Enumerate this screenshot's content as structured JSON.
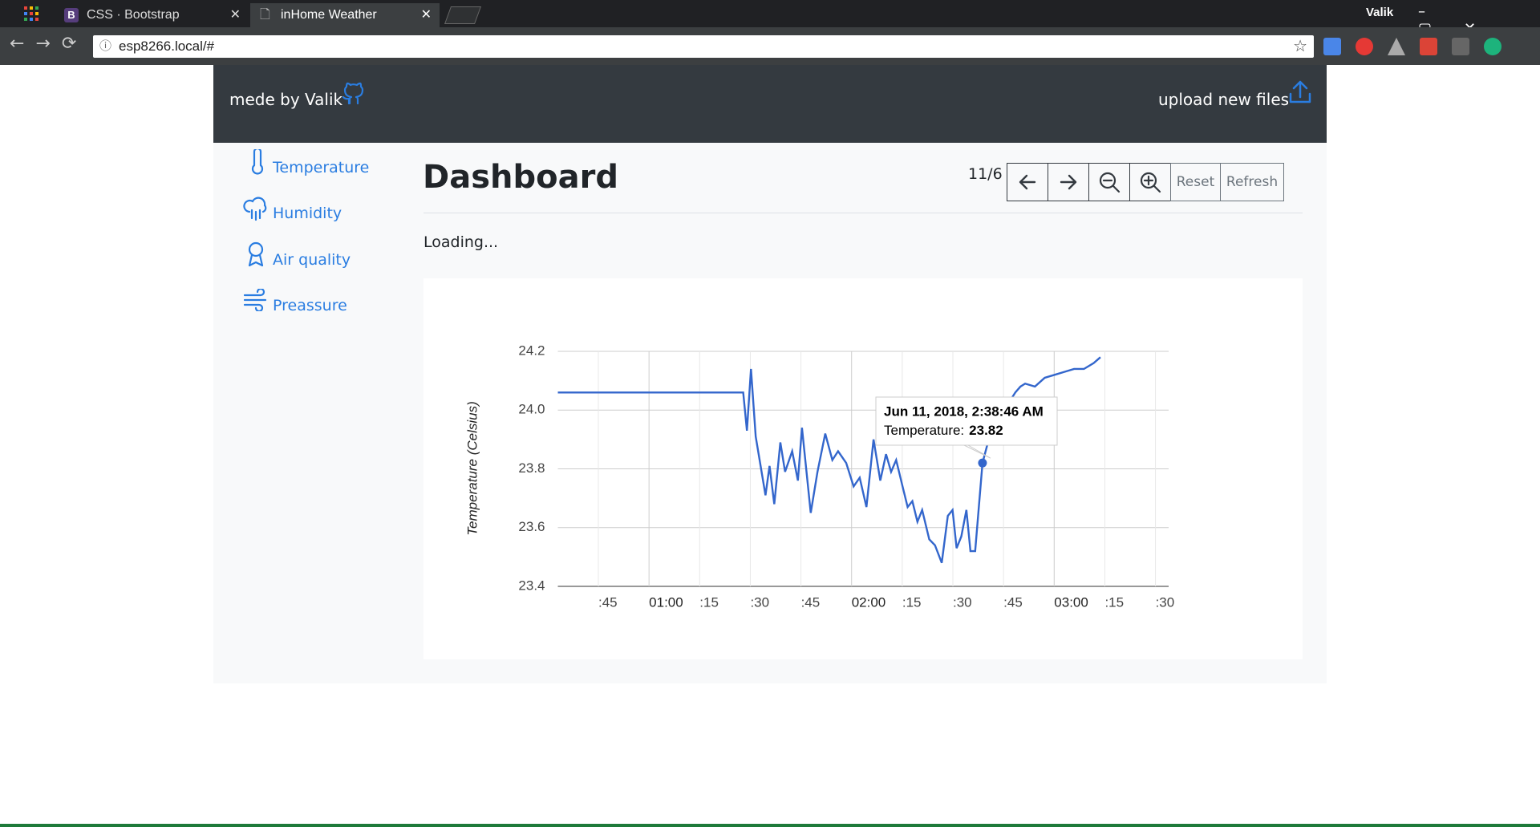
{
  "browser": {
    "tabs": [
      "CSS · Bootstrap",
      "inHome Weather"
    ],
    "user": "Valik",
    "url": "esp8266.local/#"
  },
  "nav": {
    "brand": "mede by Valik",
    "upload": "upload new files"
  },
  "sidebar": {
    "items": [
      "Temperature",
      "Humidity",
      "Air quality",
      "Preassure"
    ]
  },
  "header": {
    "title": "Dashboard",
    "page": "11/6",
    "buttons": [
      "Reset",
      "Refresh"
    ]
  },
  "status": "Loading...",
  "chart_data": {
    "type": "line",
    "y_label": "Temperature (Celsius)",
    "color": "#3366cc",
    "grid": true,
    "x": [
      33,
      87.9,
      89.0,
      90.2,
      91.6,
      94.5,
      95.7,
      97.1,
      98.9,
      100.3,
      102.4,
      104.1,
      105.3,
      107.9,
      109.9,
      112.2,
      114.3,
      116.0,
      118.4,
      120.6,
      122.4,
      124.4,
      126.5,
      128.5,
      130.2,
      131.7,
      133.2,
      135.1,
      136.6,
      138.0,
      139.5,
      140.9,
      143.0,
      144.7,
      146.7,
      148.5,
      149.9,
      151.1,
      152.5,
      154.0,
      155.2,
      156.6,
      158.77,
      161.3,
      168.5,
      170.0,
      171.4,
      174.3,
      177.2,
      180.1,
      183.0,
      185.9,
      188.8,
      191.7,
      193.7
    ],
    "values": [
      24.06,
      24.06,
      23.93,
      24.14,
      23.91,
      23.71,
      23.81,
      23.68,
      23.89,
      23.79,
      23.86,
      23.76,
      23.94,
      23.65,
      23.79,
      23.92,
      23.83,
      23.86,
      23.82,
      23.74,
      23.77,
      23.67,
      23.9,
      23.76,
      23.85,
      23.79,
      23.83,
      23.74,
      23.67,
      23.69,
      23.62,
      23.66,
      23.56,
      23.54,
      23.48,
      23.64,
      23.66,
      23.53,
      23.57,
      23.66,
      23.52,
      23.52,
      23.82,
      23.93,
      24.06,
      24.08,
      24.09,
      24.08,
      24.11,
      24.12,
      24.13,
      24.14,
      24.14,
      24.16,
      24.18
    ],
    "xlim": [
      33,
      213.9
    ],
    "xticks": [
      {
        "value": 45,
        "label": ":45"
      },
      {
        "value": 60,
        "label": "01:00"
      },
      {
        "value": 75,
        "label": ":15"
      },
      {
        "value": 90,
        "label": ":30"
      },
      {
        "value": 105,
        "label": ":45"
      },
      {
        "value": 120,
        "label": "02:00"
      },
      {
        "value": 135,
        "label": ":15"
      },
      {
        "value": 150,
        "label": ":30"
      },
      {
        "value": 165,
        "label": ":45"
      },
      {
        "value": 180,
        "label": "03:00"
      },
      {
        "value": 195,
        "label": ":15"
      },
      {
        "value": 210,
        "label": ":30"
      }
    ],
    "ylim": [
      23.4,
      24.2
    ],
    "yticks": [
      23.4,
      23.6,
      23.8,
      {
        "value": 24,
        "label": "24.0"
      },
      24.2
    ],
    "tooltip": {
      "index": 42,
      "title": "Jun 11, 2018, 2:38:46 AM",
      "label": "Temperature:"
    }
  }
}
